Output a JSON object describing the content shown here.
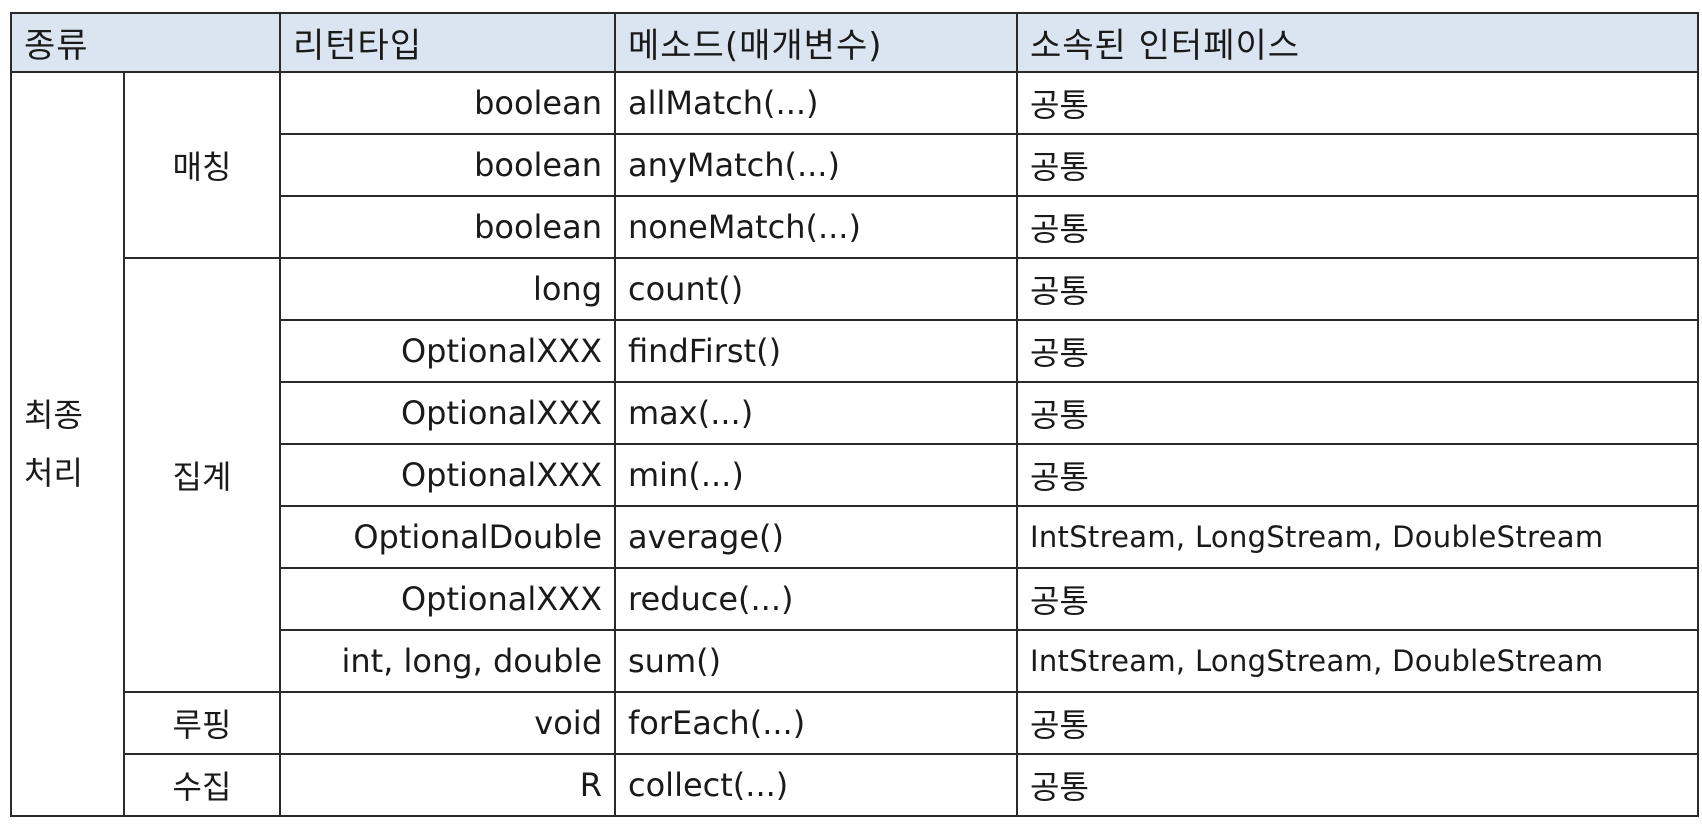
{
  "headers": {
    "kind": "종류",
    "return_type": "리턴타입",
    "method": "메소드(매개변수)",
    "interface": "소속된 인터페이스"
  },
  "category": {
    "line1": "최종",
    "line2": "처리"
  },
  "groups": {
    "matching": "매칭",
    "aggregation": "집계",
    "looping": "루핑",
    "collecting": "수집"
  },
  "rows": [
    {
      "return_type": "boolean",
      "method": "allMatch(...)",
      "interface": "공통"
    },
    {
      "return_type": "boolean",
      "method": "anyMatch(...)",
      "interface": "공통"
    },
    {
      "return_type": "boolean",
      "method": "noneMatch(...)",
      "interface": "공통"
    },
    {
      "return_type": "long",
      "method": "count()",
      "interface": "공통"
    },
    {
      "return_type": "OptionalXXX",
      "method": "findFirst()",
      "interface": "공통"
    },
    {
      "return_type": "OptionalXXX",
      "method": "max(...)",
      "interface": "공통"
    },
    {
      "return_type": "OptionalXXX",
      "method": "min(...)",
      "interface": "공통"
    },
    {
      "return_type": "OptionalDouble",
      "method": "average()",
      "interface": "IntStream, LongStream,  DoubleStream"
    },
    {
      "return_type": "OptionalXXX",
      "method": "reduce(...)",
      "interface": "공통"
    },
    {
      "return_type": "int, long,  double",
      "method": "sum()",
      "interface": "IntStream, LongStream,  DoubleStream"
    },
    {
      "return_type": "void",
      "method": "forEach(...)",
      "interface": "공통"
    },
    {
      "return_type": "R",
      "method": "collect(...)",
      "interface": "공통"
    }
  ],
  "colors": {
    "header_bg": "#dbe5f1",
    "border": "#2a2a2a"
  }
}
